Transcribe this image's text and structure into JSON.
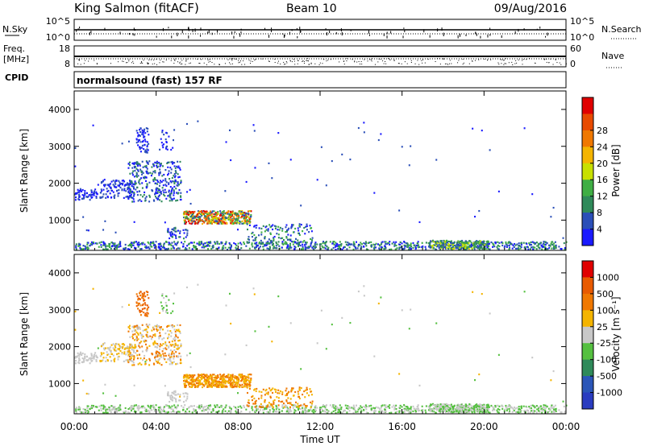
{
  "header": {
    "site": "King Salmon (fitACF)",
    "beam": "Beam 10",
    "date": "09/Aug/2016"
  },
  "panels": {
    "nsky_label": "N.Sky",
    "nsky_ticks": [
      "10^5",
      "10^0"
    ],
    "nsearch_label": "N.Search",
    "nsearch_ticks": [
      "10^5",
      "10^0"
    ],
    "freq_label": "Freq.",
    "freq_unit": "[MHz]",
    "freq_ticks": [
      "18",
      "8"
    ],
    "nave_label": "Nave",
    "nave_ticks": [
      "60",
      "0"
    ],
    "cpid_label": "CPID",
    "cpid_text": "normalsound (fast) 157 RF"
  },
  "colors": {
    "power": [
      "#1a1aff",
      "#2b4fb8",
      "#2f8a5a",
      "#3fae44",
      "#c8e000",
      "#f4b400",
      "#f07800",
      "#e84a00",
      "#e00000"
    ],
    "velocity": [
      "#2a3cc0",
      "#2b56b8",
      "#2f8a5a",
      "#55c040",
      "#c8c8c8",
      "#f4b400",
      "#f07800",
      "#e85a00",
      "#e00000"
    ]
  },
  "chart_data": [
    {
      "type": "heatmap",
      "name": "power",
      "xlabel": "",
      "ylabel": "Slant Range [km]",
      "xlim_hours": [
        0,
        24
      ],
      "ylim": [
        180,
        4500
      ],
      "yticks": [
        "1000",
        "2000",
        "3000",
        "4000"
      ],
      "colorbar_label": "Power [dB]",
      "colorbar_ticks": [
        "4",
        "8",
        "12",
        "16",
        "20",
        "24",
        "28"
      ]
    },
    {
      "type": "heatmap",
      "name": "velocity",
      "xlabel": "Time UT",
      "ylabel": "Slant Range [km]",
      "xlim_hours": [
        0,
        24
      ],
      "ylim": [
        180,
        4500
      ],
      "xticks": [
        "00:00",
        "04:00",
        "08:00",
        "12:00",
        "16:00",
        "20:00",
        "00:00"
      ],
      "yticks": [
        "1000",
        "2000",
        "3000",
        "4000"
      ],
      "colorbar_label": "Velocity [m s⁻¹]",
      "colorbar_ticks": [
        "1000",
        "500",
        "100",
        "25",
        "-25",
        "-100",
        "-500",
        "-1000"
      ]
    }
  ]
}
